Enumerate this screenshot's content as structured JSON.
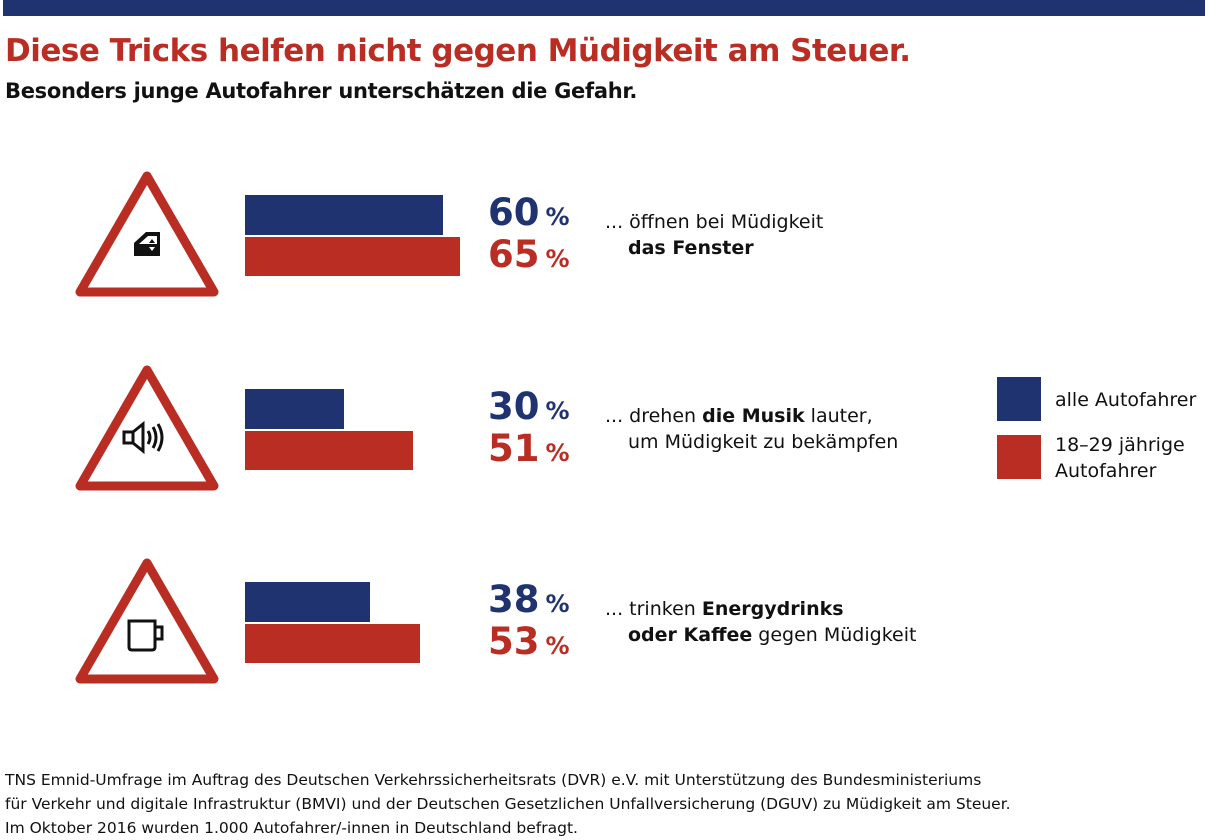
{
  "title": "Diese Tricks helfen nicht gegen Müdigkeit am Steuer.",
  "subtitle": "Besonders junge Autofahrer unterschätzen die Gefahr.",
  "colors": {
    "blue": "#1f3370",
    "red": "#b92d23"
  },
  "chart_data": {
    "type": "bar",
    "orientation": "horizontal",
    "unit": "%",
    "categories": [
      "... öffnen bei Müdigkeit das Fenster",
      "... drehen die Musik lauter, um Müdigkeit zu bekämpfen",
      "... trinken Energydrinks oder Kaffee gegen Müdigkeit"
    ],
    "series": [
      {
        "name": "alle Autofahrer",
        "values": [
          60,
          30,
          38
        ],
        "color": "#1f3370"
      },
      {
        "name": "18–29 jährige Autofahrer",
        "values": [
          65,
          51,
          53
        ],
        "color": "#b92d23"
      }
    ],
    "legend_position": "right",
    "grid": false
  },
  "rows": [
    {
      "icon": "car-window-icon",
      "blue_value": "60",
      "red_value": "65",
      "percent_sign": "%",
      "lines": [
        [
          {
            "t": "... öffnen bei Müdigkeit",
            "b": false
          }
        ],
        [
          {
            "t": "das Fenster",
            "b": true
          }
        ]
      ]
    },
    {
      "icon": "speaker-icon",
      "blue_value": "30",
      "red_value": "51",
      "percent_sign": "%",
      "lines": [
        [
          {
            "t": "... drehen ",
            "b": false
          },
          {
            "t": "die Musik",
            "b": true
          },
          {
            "t": " lauter,",
            "b": false
          }
        ],
        [
          {
            "t": "um Müdigkeit zu bekämpfen",
            "b": false
          }
        ]
      ]
    },
    {
      "icon": "coffee-cup-icon",
      "blue_value": "38",
      "red_value": "53",
      "percent_sign": "%",
      "lines": [
        [
          {
            "t": "... trinken ",
            "b": false
          },
          {
            "t": "Energydrinks",
            "b": true
          }
        ],
        [
          {
            "t": "oder Kaffee",
            "b": true
          },
          {
            "t": " gegen Müdigkeit",
            "b": false
          }
        ]
      ]
    }
  ],
  "legend": {
    "blue_label": "alle Autofahrer",
    "red_label_1": "18–29 jährige",
    "red_label_2": "Autofahrer"
  },
  "footer": [
    "TNS Emnid-Umfrage im Auftrag des Deutschen Verkehrssicherheitsrats (DVR) e.V. mit Unterstützung des Bundesministeriums",
    "für Verkehr und digitale Infrastruktur (BMVI) und der Deutschen Gesetzlichen Unfallversicherung (DGUV) zu Müdigkeit am Steuer.",
    "Im Oktober 2016 wurden 1.000 Autofahrer/-innen in Deutschland befragt."
  ]
}
